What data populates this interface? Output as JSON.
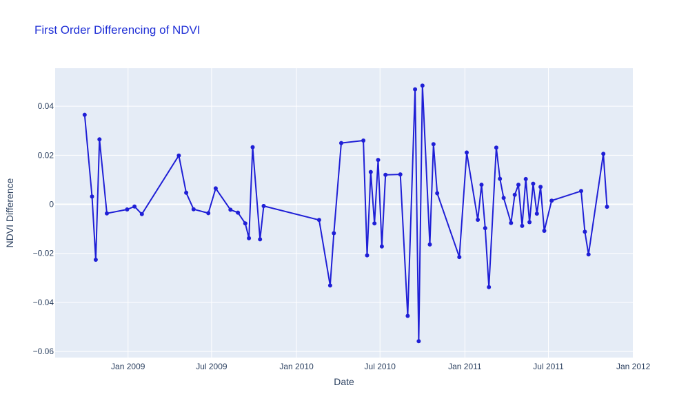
{
  "colors": {
    "title": "#1f2fd6",
    "line": "#1f1fd6",
    "plot_bg": "#e5ecf6",
    "grid": "#ffffff",
    "text": "#2a3f5f"
  },
  "chart_data": {
    "type": "line",
    "mode": "lines+markers",
    "title": "First Order Differencing of NDVI",
    "xlabel": "Date",
    "ylabel": "NDVI Difference",
    "x_type": "date",
    "xlim": [
      "2008-07-27",
      "2011-12-31"
    ],
    "ylim": [
      -0.0625,
      0.0555
    ],
    "grid": true,
    "x_ticks": [
      {
        "value": "2009-01-01",
        "label": "Jan 2009"
      },
      {
        "value": "2009-07-01",
        "label": "Jul 2009"
      },
      {
        "value": "2010-01-01",
        "label": "Jan 2010"
      },
      {
        "value": "2010-07-01",
        "label": "Jul 2010"
      },
      {
        "value": "2011-01-01",
        "label": "Jan 2011"
      },
      {
        "value": "2011-07-01",
        "label": "Jul 2011"
      },
      {
        "value": "2012-01-01",
        "label": "Jan 2012"
      }
    ],
    "y_ticks": [
      {
        "value": 0.04,
        "label": "0.04"
      },
      {
        "value": 0.02,
        "label": "0.02"
      },
      {
        "value": 0,
        "label": "0"
      },
      {
        "value": -0.02,
        "label": "−0.02"
      },
      {
        "value": -0.04,
        "label": "−0.04"
      },
      {
        "value": -0.06,
        "label": "−0.06"
      }
    ],
    "series": [
      {
        "x": [
          "2008-09-29",
          "2008-10-15",
          "2008-10-23",
          "2008-10-31",
          "2008-11-16",
          "2008-12-30",
          "2009-01-15",
          "2009-01-31",
          "2009-04-21",
          "2009-05-07",
          "2009-05-23",
          "2009-06-24",
          "2009-07-10",
          "2009-08-11",
          "2009-08-27",
          "2009-09-12",
          "2009-09-20",
          "2009-09-28",
          "2009-10-14",
          "2009-10-22",
          "2010-02-19",
          "2010-03-15",
          "2010-03-23",
          "2010-04-08",
          "2010-05-26",
          "2010-06-03",
          "2010-06-11",
          "2010-06-19",
          "2010-06-27",
          "2010-07-05",
          "2010-07-13",
          "2010-08-14",
          "2010-08-30",
          "2010-09-15",
          "2010-09-23",
          "2010-10-01",
          "2010-10-17",
          "2010-10-25",
          "2010-11-02",
          "2010-12-20",
          "2011-01-05",
          "2011-01-29",
          "2011-02-06",
          "2011-02-14",
          "2011-02-22",
          "2011-03-10",
          "2011-03-18",
          "2011-03-26",
          "2011-04-11",
          "2011-04-19",
          "2011-04-27",
          "2011-05-05",
          "2011-05-13",
          "2011-05-21",
          "2011-05-29",
          "2011-06-06",
          "2011-06-14",
          "2011-06-22",
          "2011-07-08",
          "2011-09-10",
          "2011-09-18",
          "2011-09-26",
          "2011-10-28",
          "2011-11-05"
        ],
        "y": [
          0.0365,
          0.0032,
          -0.0226,
          0.0265,
          -0.0037,
          -0.0021,
          -0.0009,
          -0.004,
          0.0199,
          0.0047,
          -0.002,
          -0.0036,
          0.0065,
          -0.0022,
          -0.0034,
          -0.0078,
          -0.0138,
          0.0233,
          -0.0143,
          -0.0007,
          -0.0064,
          -0.0331,
          -0.0118,
          0.025,
          0.026,
          -0.0208,
          0.0132,
          -0.0078,
          0.0181,
          -0.0172,
          0.012,
          0.0122,
          -0.0455,
          0.0469,
          -0.0558,
          0.0484,
          -0.0164,
          0.0245,
          0.0045,
          -0.0215,
          0.0211,
          -0.0063,
          0.008,
          -0.0097,
          -0.0338,
          0.0231,
          0.0104,
          0.0026,
          -0.0076,
          0.0039,
          0.008,
          -0.0088,
          0.0103,
          -0.0073,
          0.0084,
          -0.0038,
          0.0071,
          -0.0108,
          0.0015,
          0.0054,
          -0.0112,
          -0.0204,
          0.0206,
          -0.001
        ]
      }
    ]
  }
}
